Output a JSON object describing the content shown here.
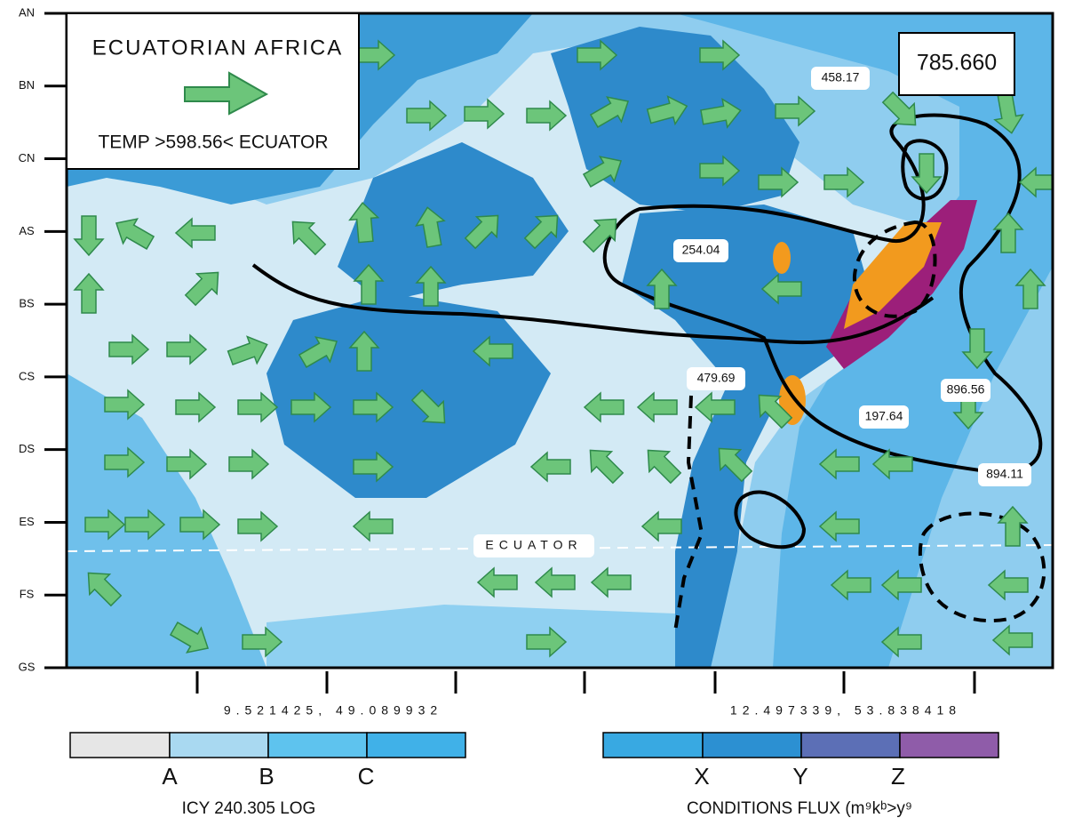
{
  "y_axis": {
    "labels": [
      "AN",
      "BN",
      "CN",
      "AS",
      "BS",
      "CS",
      "DS",
      "ES",
      "FS",
      "GS"
    ]
  },
  "legend": {
    "title": "ECUATORIAN AFRICA",
    "caption": "TEMP >598.56< ECUATOR"
  },
  "value_box": "785.660",
  "map_labels": [
    "458.17",
    "254.04",
    "479.69",
    "896.56",
    "197.64",
    "894.11"
  ],
  "equator_label": "ECUATOR",
  "coordinates": [
    "9.521425, 49.089932",
    "12.497339, 53.838418"
  ],
  "scale_left": {
    "labels": [
      "A",
      "B",
      "C"
    ],
    "caption": "ICY 240.305 LOG"
  },
  "scale_right": {
    "labels": [
      "X",
      "Y",
      "Z"
    ],
    "caption": "CONDITIONS FLUX (m⁹kᵇ>y⁹"
  }
}
